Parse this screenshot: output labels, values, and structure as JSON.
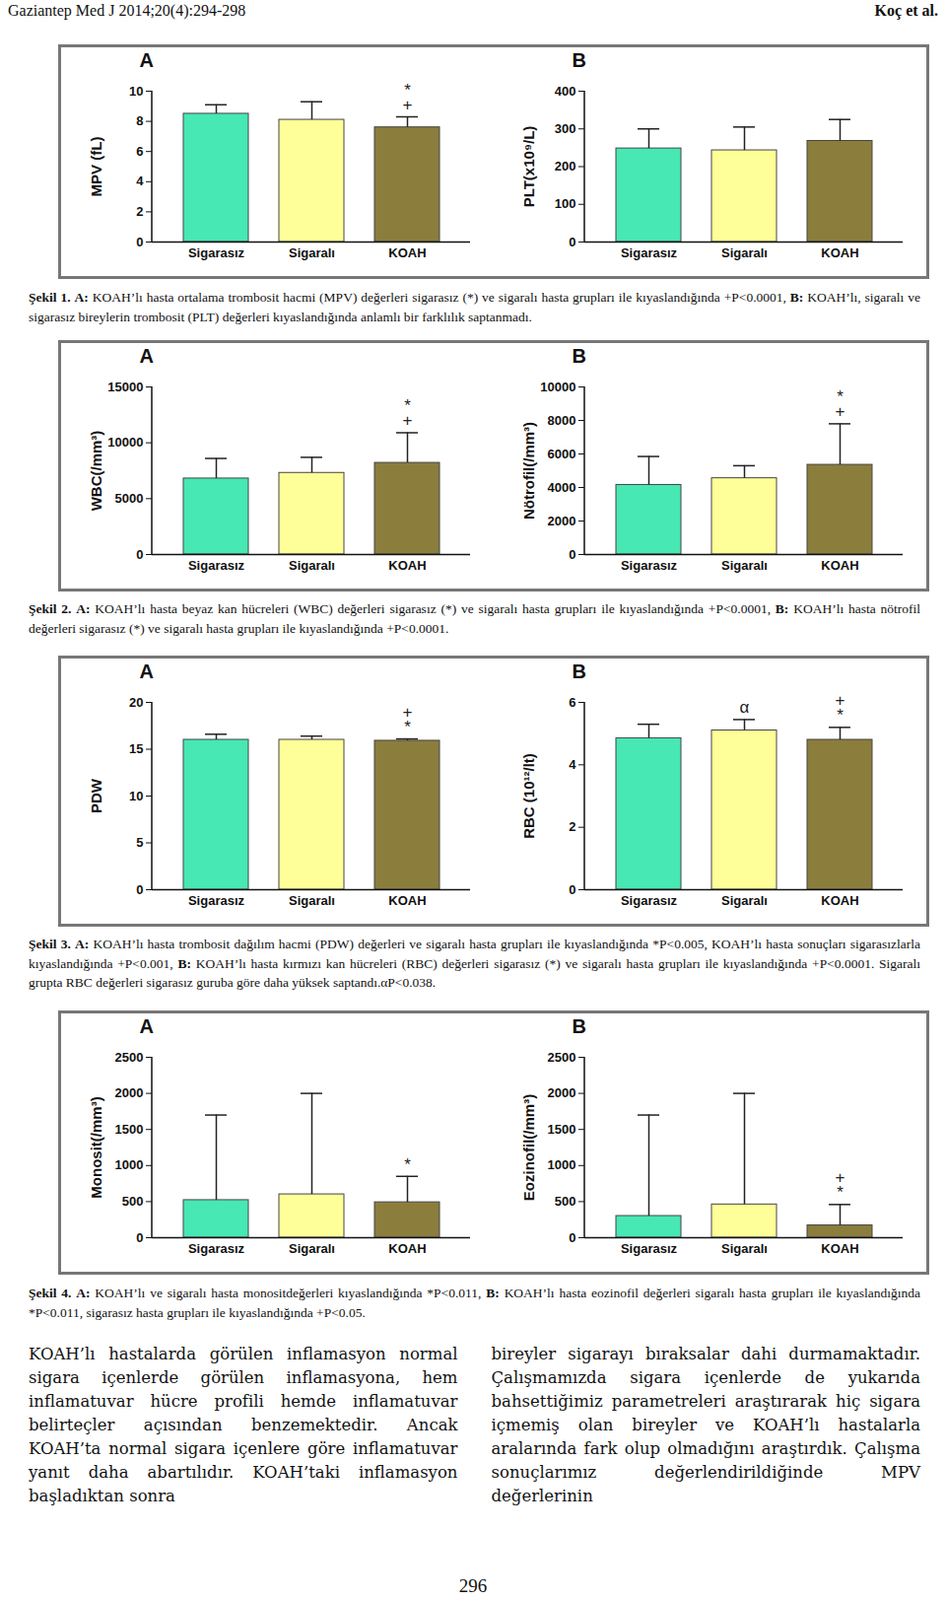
{
  "header": {
    "left": "Gaziantep Med J 2014;20(4):294-298",
    "right": "Koç et al."
  },
  "chart_data": [
    {
      "type": "bar",
      "title": "A",
      "categories": [
        "Sigarasız",
        "Sigaralı",
        "KOAH"
      ],
      "values": [
        8.5,
        8.1,
        7.6
      ],
      "errors": [
        0.6,
        1.2,
        0.7
      ],
      "colors": [
        "#47e8b4",
        "#ffff99",
        "#8b7d3c"
      ],
      "ylabel": "MPV (fL)",
      "ylim": [
        0,
        10
      ],
      "yticks": [
        0,
        2,
        4,
        6,
        8,
        10
      ],
      "annotations": [
        [],
        [],
        [
          "+",
          "*"
        ]
      ]
    },
    {
      "type": "bar",
      "title": "B",
      "categories": [
        "Sigarasız",
        "Sigaralı",
        "KOAH"
      ],
      "values": [
        248,
        243,
        268
      ],
      "errors": [
        52,
        62,
        57
      ],
      "colors": [
        "#47e8b4",
        "#ffff99",
        "#8b7d3c"
      ],
      "ylabel": "PLT(x10⁹/L)",
      "ylim": [
        0,
        400
      ],
      "yticks": [
        0,
        100,
        200,
        300,
        400
      ],
      "annotations": [
        [],
        [],
        []
      ]
    },
    {
      "type": "bar",
      "title": "A",
      "categories": [
        "Sigarasız",
        "Sigaralı",
        "KOAH"
      ],
      "values": [
        6800,
        7300,
        8200
      ],
      "errors": [
        1800,
        1400,
        2700
      ],
      "colors": [
        "#47e8b4",
        "#ffff99",
        "#8b7d3c"
      ],
      "ylabel": "WBC(/mm³)",
      "ylim": [
        0,
        15000
      ],
      "yticks": [
        0,
        5000,
        10000,
        15000
      ],
      "annotations": [
        [],
        [],
        [
          "+",
          "*"
        ]
      ]
    },
    {
      "type": "bar",
      "title": "B",
      "categories": [
        "Sigarasız",
        "Sigaralı",
        "KOAH"
      ],
      "values": [
        4150,
        4550,
        5350
      ],
      "errors": [
        1700,
        750,
        2450
      ],
      "colors": [
        "#47e8b4",
        "#ffff99",
        "#8b7d3c"
      ],
      "ylabel": "Nötrofil(/mm³)",
      "ylim": [
        0,
        10000
      ],
      "yticks": [
        0,
        2000,
        4000,
        6000,
        8000,
        10000
      ],
      "annotations": [
        [],
        [],
        [
          "+",
          "*"
        ]
      ]
    },
    {
      "type": "bar",
      "title": "A",
      "categories": [
        "Sigarasız",
        "Sigaralı",
        "KOAH"
      ],
      "values": [
        16.0,
        16.0,
        15.9
      ],
      "errors": [
        0.6,
        0.4,
        0.2
      ],
      "colors": [
        "#47e8b4",
        "#ffff99",
        "#8b7d3c"
      ],
      "ylabel": "PDW",
      "ylim": [
        0,
        20
      ],
      "yticks": [
        0,
        5,
        10,
        15,
        20
      ],
      "annotations": [
        [],
        [],
        [
          "*",
          "+"
        ]
      ]
    },
    {
      "type": "bar",
      "title": "B",
      "categories": [
        "Sigarasız",
        "Sigaralı",
        "KOAH"
      ],
      "values": [
        4.85,
        5.1,
        4.8
      ],
      "errors": [
        0.45,
        0.35,
        0.4
      ],
      "colors": [
        "#47e8b4",
        "#ffff99",
        "#8b7d3c"
      ],
      "ylabel": "RBC (10¹²/lt)",
      "ylim": [
        0,
        6
      ],
      "yticks": [
        0,
        2,
        4,
        6
      ],
      "annotations": [
        [],
        [
          "α"
        ],
        [
          "*",
          "+"
        ]
      ]
    },
    {
      "type": "bar",
      "title": "A",
      "categories": [
        "Sigarasız",
        "Sigaralı",
        "KOAH"
      ],
      "values": [
        520,
        600,
        490
      ],
      "errors": [
        1180,
        1400,
        360
      ],
      "colors": [
        "#47e8b4",
        "#ffff99",
        "#8b7d3c"
      ],
      "ylabel": "Monosit(/mm³)",
      "ylim": [
        0,
        2500
      ],
      "yticks": [
        0,
        500,
        1000,
        1500,
        2000,
        2500
      ],
      "annotations": [
        [],
        [],
        [
          "*"
        ]
      ]
    },
    {
      "type": "bar",
      "title": "B",
      "categories": [
        "Sigarasız",
        "Sigaralı",
        "KOAH"
      ],
      "values": [
        300,
        460,
        170
      ],
      "errors": [
        1400,
        1540,
        290
      ],
      "colors": [
        "#47e8b4",
        "#ffff99",
        "#8b7d3c"
      ],
      "ylabel": "Eozinofil(/mm³)",
      "ylim": [
        0,
        2500
      ],
      "yticks": [
        0,
        500,
        1000,
        1500,
        2000,
        2500
      ],
      "annotations": [
        [],
        [],
        [
          "*",
          "+"
        ]
      ]
    }
  ],
  "captions": [
    {
      "label": "Şekil 1.",
      "parts": [
        {
          "key": "A:",
          "text": "KOAH’lı hasta ortalama trombosit hacmi (MPV) değerleri sigarasız (*) ve sigaralı hasta grupları ile kıyaslandığında +P<0.0001,"
        },
        {
          "key": "B:",
          "text": "KOAH’lı, sigaralı ve sigarasız bireylerin trombosit (PLT) değerleri kıyaslandığında anlamlı bir farklılık saptanmadı."
        }
      ]
    },
    {
      "label": "Şekil 2.",
      "parts": [
        {
          "key": "A:",
          "text": "KOAH’lı hasta beyaz kan hücreleri (WBC) değerleri sigarasız (*) ve sigaralı hasta grupları ile kıyaslandığında +P<0.0001,"
        },
        {
          "key": "B:",
          "text": "KOAH’lı hasta nötrofil değerleri sigarasız (*) ve sigaralı hasta grupları ile kıyaslandığında +P<0.0001."
        }
      ]
    },
    {
      "label": "Şekil 3.",
      "parts": [
        {
          "key": "A:",
          "text": "KOAH’lı hasta trombosit dağılım hacmi (PDW) değerleri ve sigaralı hasta grupları ile kıyaslandığında *P<0.005, KOAH’lı hasta sonuçları sigarasızlarla kıyaslandığında +P<0.001,"
        },
        {
          "key": "B:",
          "text": "KOAH’lı hasta kırmızı kan hücreleri (RBC) değerleri sigarasız (*) ve sigaralı hasta grupları ile kıyaslandığında +P<0.0001. Sigaralı grupta RBC değerleri sigarasız guruba göre daha yüksek saptandı.αP<0.038."
        }
      ]
    },
    {
      "label": "Şekil 4.",
      "parts": [
        {
          "key": "A:",
          "text": "KOAH’lı ve sigaralı hasta monositdeğerleri kıyaslandığında *P<0.011,"
        },
        {
          "key": "B:",
          "text": "KOAH’lı hasta eozinofil değerleri sigaralı hasta grupları ile kıyaslandığında *P<0.011, sigarasız hasta grupları ile kıyaslandığında +P<0.05."
        }
      ]
    }
  ],
  "body": [
    "KOAH’lı hastalarda görülen inflamasyon normal sigara içenlerde görülen inflamasyona, hem inflamatuvar hücre profili hemde inflamatuvar belirteçler açısından benzemektedir. Ancak KOAH’ta normal sigara içenlere göre inflamatuvar yanıt daha abartılıdır. KOAH’taki inflamasyon başladıktan sonra",
    "bireyler sigarayı bıraksalar dahi durmamaktadır. Çalışmamızda sigara içenlerde de yukarıda bahsettiğimiz parametreleri araştırarak hiç sigara içmemiş olan bireyler ve KOAH’lı hastalarla aralarında fark olup olmadığını araştırdık. Çalışma sonuçlarımız değerlendirildiğinde MPV değerlerinin"
  ],
  "page_number": "296"
}
